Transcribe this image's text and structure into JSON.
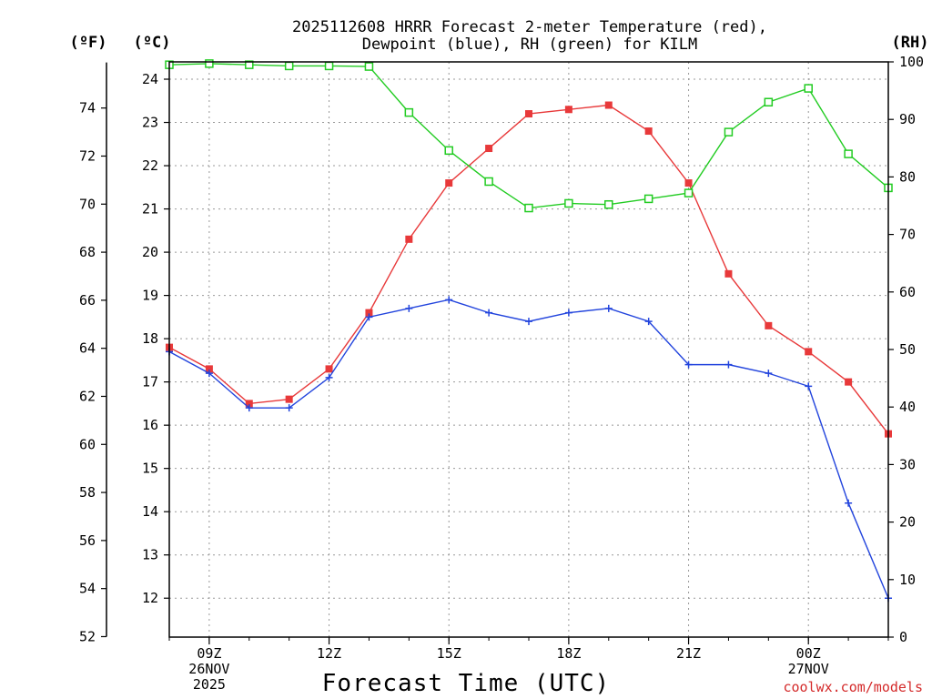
{
  "chart_data": {
    "type": "line",
    "title_line1": "2025112608 HRRR Forecast 2-meter Temperature (red),",
    "title_line2": "Dewpoint (blue), RH (green) for KILM",
    "xlabel": "Forecast Time (UTC)",
    "credit": "coolwx.com/models",
    "unit_f": "(ºF)",
    "unit_c": "(ºC)",
    "unit_rh": "(RH)",
    "x_hours": [
      8,
      9,
      10,
      11,
      12,
      13,
      14,
      15,
      16,
      17,
      18,
      19,
      20,
      21,
      22,
      23,
      24,
      25,
      26
    ],
    "x_ticks": [
      {
        "hour": 9,
        "lines": [
          "09Z",
          "26NOV",
          "2025"
        ]
      },
      {
        "hour": 12,
        "lines": [
          "12Z"
        ]
      },
      {
        "hour": 15,
        "lines": [
          "15Z"
        ]
      },
      {
        "hour": 18,
        "lines": [
          "18Z"
        ]
      },
      {
        "hour": 21,
        "lines": [
          "21Z"
        ]
      },
      {
        "hour": 24,
        "lines": [
          "00Z",
          "27NOV"
        ]
      }
    ],
    "ylim_c": [
      11.1,
      24.4
    ],
    "ylim_rh": [
      0,
      100
    ],
    "f_ticks": [
      "52",
      "54",
      "56",
      "58",
      "60",
      "62",
      "64",
      "66",
      "68",
      "70",
      "72",
      "74"
    ],
    "c_ticks": [
      "12",
      "13",
      "14",
      "15",
      "16",
      "17",
      "18",
      "19",
      "20",
      "21",
      "22",
      "23",
      "24"
    ],
    "rh_ticks": [
      "0",
      "10",
      "20",
      "30",
      "40",
      "50",
      "60",
      "70",
      "80",
      "90",
      "100"
    ],
    "series": [
      {
        "name": "Temperature",
        "unit": "C",
        "color": "#e8393a",
        "marker": "filled-square",
        "values": [
          17.8,
          17.3,
          16.5,
          16.6,
          17.3,
          18.6,
          20.3,
          21.6,
          22.4,
          23.2,
          23.3,
          23.4,
          22.8,
          21.6,
          19.5,
          18.3,
          17.7,
          17.0,
          15.8
        ]
      },
      {
        "name": "Dewpoint",
        "unit": "C",
        "color": "#2244dd",
        "marker": "plus",
        "values": [
          17.7,
          17.2,
          16.4,
          16.4,
          17.1,
          18.5,
          18.7,
          18.9,
          18.6,
          18.4,
          18.6,
          18.7,
          18.4,
          17.4,
          17.4,
          17.2,
          16.9,
          14.2,
          12.0
        ]
      },
      {
        "name": "Relative Humidity",
        "unit": "%",
        "color": "#22cc22",
        "marker": "open-square",
        "values": [
          99.5,
          99.7,
          99.5,
          99.3,
          99.3,
          99.2,
          91.2,
          84.6,
          79.2,
          74.6,
          75.4,
          75.2,
          76.2,
          77.2,
          87.8,
          93.0,
          95.4,
          84.0,
          78.1
        ]
      }
    ],
    "grid": true
  }
}
